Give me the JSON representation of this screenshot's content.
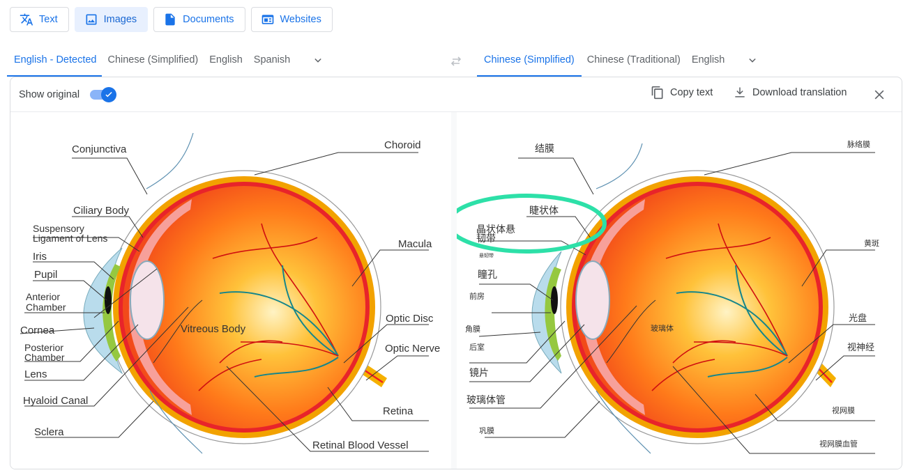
{
  "modes": {
    "text": "Text",
    "images": "Images",
    "documents": "Documents",
    "websites": "Websites"
  },
  "source_langs": [
    "English - Detected",
    "Chinese (Simplified)",
    "English",
    "Spanish"
  ],
  "target_langs": [
    "Chinese (Simplified)",
    "Chinese (Traditional)",
    "English"
  ],
  "toolbar": {
    "show_original": "Show original",
    "copy_text": "Copy text",
    "download": "Download translation"
  },
  "labels_en": {
    "conjunctiva": "Conjunctiva",
    "ciliary_body": "Ciliary Body",
    "suspensory": "Suspensory",
    "ligament": "Ligament of Lens",
    "iris": "Iris",
    "pupil": "Pupil",
    "anterior": "Anterior",
    "chamber1": "Chamber",
    "cornea": "Cornea",
    "posterior": "Posterior",
    "chamber2": "Chamber",
    "lens": "Lens",
    "hyaloid": "Hyaloid Canal",
    "sclera": "Sclera",
    "choroid": "Choroid",
    "macula": "Macula",
    "optic_disc": "Optic Disc",
    "optic_nerve": "Optic Nerve",
    "retina": "Retina",
    "vessel": "Retinal Blood Vessel",
    "vitreous": "Vitreous Body"
  },
  "labels_zh": {
    "conjunctiva": "结膜",
    "ciliary_body": "睫状体",
    "suspensory_1": "晶状体悬",
    "suspensory_2": "韧带",
    "small": "悬韧带",
    "pupil": "瞳孔",
    "anterior": "前房",
    "cornea": "角膜",
    "posterior": "后室",
    "lens": "镜片",
    "hyaloid": "玻璃体管",
    "sclera": "巩膜",
    "choroid": "脉络膜",
    "macula": "黄斑",
    "optic_disc": "光盘",
    "optic_nerve": "视神经",
    "retina": "视网膜",
    "vessel": "视网膜血管",
    "vitreous": "玻璃体"
  },
  "colors": {
    "accent": "#1a73e8",
    "highlight_ellipse": "#00e0a0"
  }
}
